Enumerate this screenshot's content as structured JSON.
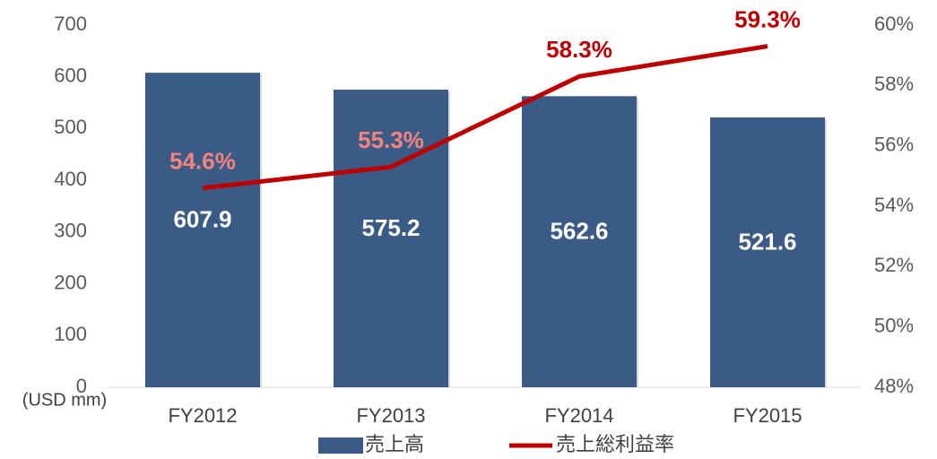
{
  "chart_data": {
    "type": "bar",
    "categories": [
      "FY2012",
      "FY2013",
      "FY2014",
      "FY2015"
    ],
    "series": [
      {
        "name": "売上高",
        "type": "bar",
        "color": "#3b5b87",
        "values": [
          607.9,
          575.2,
          562.6,
          521.6
        ],
        "label_color": "#ffffff"
      },
      {
        "name": "売上総利益率",
        "type": "line",
        "axis": "y2",
        "color": "#c00000",
        "values": [
          54.6,
          55.3,
          58.3,
          59.3
        ],
        "value_labels": [
          "54.6%",
          "55.3%",
          "58.3%",
          "59.3%"
        ],
        "value_label_colors": [
          "#f4837d",
          "#f4837d",
          "#c00000",
          "#c00000"
        ]
      }
    ],
    "ylim": [
      0,
      700
    ],
    "yticks": [
      0,
      100,
      200,
      300,
      400,
      500,
      600,
      700
    ],
    "y2lim": [
      48,
      60
    ],
    "y2ticks": [
      {
        "value": 48,
        "label": "48%"
      },
      {
        "value": 50,
        "label": "50%"
      },
      {
        "value": 52,
        "label": "52%"
      },
      {
        "value": 54,
        "label": "54%"
      },
      {
        "value": 56,
        "label": "56%"
      },
      {
        "value": 58,
        "label": "58%"
      },
      {
        "value": 60,
        "label": "60%"
      }
    ],
    "y_unit_label": "(USD mm)",
    "grid": false,
    "legend": "bottom"
  }
}
